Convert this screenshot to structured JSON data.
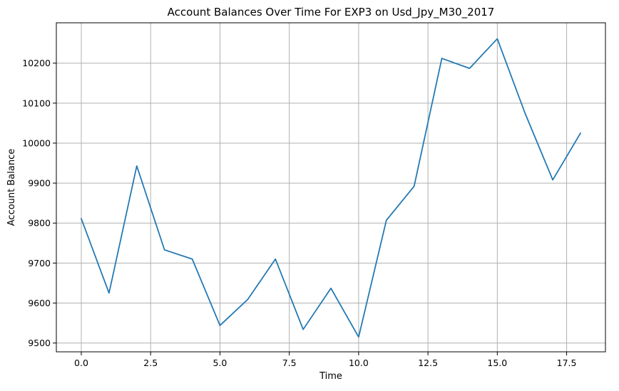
{
  "chart_data": {
    "type": "line",
    "title": "Account Balances Over Time For EXP3 on Usd_Jpy_M30_2017",
    "xlabel": "Time",
    "ylabel": "Account Balance",
    "xlim": [
      -0.9,
      18.9
    ],
    "ylim": [
      9478,
      10301
    ],
    "xticks": [
      0,
      2.5,
      5,
      7.5,
      10,
      12.5,
      15,
      17.5
    ],
    "xtick_labels": [
      "0.0",
      "2.5",
      "5.0",
      "7.5",
      "10.0",
      "12.5",
      "15.0",
      "17.5"
    ],
    "yticks": [
      9500,
      9600,
      9700,
      9800,
      9900,
      10000,
      10100,
      10200
    ],
    "ytick_labels": [
      "9500",
      "9600",
      "9700",
      "9800",
      "9900",
      "10000",
      "10100",
      "10200"
    ],
    "grid": true,
    "legend": "none",
    "series": [
      {
        "color": "#1f77b4",
        "x": [
          0,
          1,
          2,
          3,
          4,
          5,
          6,
          7,
          8,
          9,
          10,
          11,
          12,
          13,
          14,
          15,
          16,
          17,
          18
        ],
        "y": [
          9811,
          9625,
          9943,
          9733,
          9710,
          9544,
          9609,
          9710,
          9534,
          9637,
          9515,
          9807,
          9892,
          10212,
          10187,
          10261,
          10075,
          9908,
          10025
        ]
      }
    ]
  }
}
